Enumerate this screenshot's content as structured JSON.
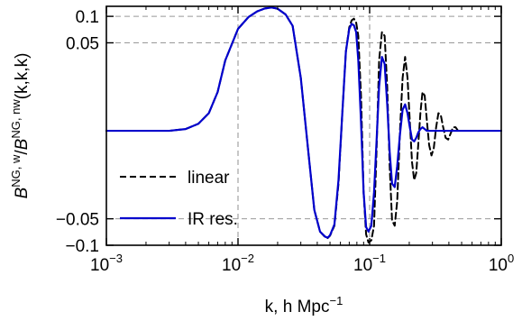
{
  "chart_data": {
    "type": "line",
    "xlabel": "k, h Mpc",
    "xlabel_sup": "−1",
    "ylabel_parts": [
      {
        "t": "B",
        "style": "italic"
      },
      {
        "t": "NG, w",
        "style": "sup"
      },
      {
        "t": "/",
        "style": "normal"
      },
      {
        "t": "B",
        "style": "italic"
      },
      {
        "t": "NG, nw",
        "style": "sup"
      },
      {
        "t": "(k,k,k)",
        "style": "normal"
      }
    ],
    "x_scale": "log",
    "xlim": [
      0.001,
      1.0
    ],
    "y_scale": "symlog",
    "y_linthresh": 0.05,
    "ylim": [
      -0.1,
      0.13
    ],
    "grid": "dashed",
    "legend_position": "lower-left",
    "x_ticks": [
      {
        "value": 0.001,
        "base": "10",
        "exp": "−3"
      },
      {
        "value": 0.01,
        "base": "10",
        "exp": "−2"
      },
      {
        "value": 0.1,
        "base": "10",
        "exp": "−1"
      },
      {
        "value": 1.0,
        "base": "10",
        "exp": "0"
      }
    ],
    "y_ticks": [
      {
        "value": 0.1,
        "label": "0.1"
      },
      {
        "value": 0.05,
        "label": "0.05"
      },
      {
        "value": -0.05,
        "label": "−0.05"
      },
      {
        "value": -0.1,
        "label": "−0.1"
      }
    ],
    "series": [
      {
        "name": "linear",
        "color": "#000000",
        "dash": "dashed",
        "x": [
          0.001,
          0.003,
          0.004,
          0.005,
          0.006,
          0.007,
          0.008,
          0.01,
          0.012,
          0.014,
          0.016,
          0.018,
          0.02,
          0.023,
          0.026,
          0.03,
          0.034,
          0.038,
          0.042,
          0.046,
          0.048,
          0.05,
          0.054,
          0.058,
          0.062,
          0.066,
          0.07,
          0.073,
          0.076,
          0.079,
          0.082,
          0.086,
          0.09,
          0.094,
          0.098,
          0.103,
          0.108,
          0.113,
          0.118,
          0.124,
          0.13,
          0.136,
          0.142,
          0.148,
          0.155,
          0.162,
          0.17,
          0.178,
          0.186,
          0.194,
          0.202,
          0.21,
          0.218,
          0.226,
          0.234,
          0.243,
          0.252,
          0.262,
          0.272,
          0.283,
          0.295,
          0.307,
          0.32,
          0.333,
          0.347,
          0.362,
          0.378,
          0.395,
          0.41,
          0.43,
          0.45,
          0.47,
          0.5,
          0.6,
          0.8,
          1.0
        ],
        "y": [
          0.0,
          0.0,
          0.001,
          0.004,
          0.01,
          0.022,
          0.04,
          0.072,
          0.098,
          0.114,
          0.123,
          0.126,
          0.122,
          0.105,
          0.078,
          0.03,
          -0.01,
          -0.045,
          -0.07,
          -0.081,
          -0.083,
          -0.078,
          -0.06,
          -0.03,
          0.01,
          0.045,
          0.075,
          0.09,
          0.094,
          0.085,
          0.06,
          0.02,
          -0.035,
          -0.075,
          -0.093,
          -0.088,
          -0.06,
          -0.01,
          0.04,
          0.066,
          0.06,
          0.025,
          -0.02,
          -0.052,
          -0.06,
          -0.04,
          0.0,
          0.03,
          0.042,
          0.03,
          0.005,
          -0.018,
          -0.028,
          -0.024,
          -0.008,
          0.01,
          0.022,
          0.02,
          0.006,
          -0.008,
          -0.014,
          -0.01,
          0.002,
          0.01,
          0.009,
          0.002,
          -0.004,
          -0.005,
          -0.002,
          0.002,
          0.002,
          0.0,
          0.0,
          0.0,
          0.0,
          0.0
        ]
      },
      {
        "name": "IR res.",
        "color": "#0000cc",
        "dash": "solid",
        "x": [
          0.001,
          0.003,
          0.004,
          0.005,
          0.006,
          0.007,
          0.008,
          0.01,
          0.012,
          0.014,
          0.016,
          0.018,
          0.02,
          0.023,
          0.026,
          0.03,
          0.034,
          0.038,
          0.042,
          0.046,
          0.048,
          0.05,
          0.054,
          0.058,
          0.062,
          0.066,
          0.07,
          0.073,
          0.076,
          0.079,
          0.082,
          0.086,
          0.09,
          0.094,
          0.098,
          0.103,
          0.108,
          0.113,
          0.118,
          0.124,
          0.13,
          0.136,
          0.142,
          0.148,
          0.155,
          0.162,
          0.17,
          0.178,
          0.186,
          0.194,
          0.202,
          0.21,
          0.218,
          0.226,
          0.234,
          0.243,
          0.252,
          0.262,
          0.272,
          0.283,
          0.295,
          0.307,
          0.32,
          0.333,
          0.347,
          0.362,
          0.378,
          0.395,
          0.41,
          0.43,
          0.45,
          0.47,
          0.5,
          0.6,
          0.8,
          1.0
        ],
        "y": [
          0.0,
          0.0,
          0.001,
          0.004,
          0.01,
          0.022,
          0.04,
          0.072,
          0.098,
          0.114,
          0.123,
          0.126,
          0.122,
          0.105,
          0.078,
          0.03,
          -0.01,
          -0.045,
          -0.07,
          -0.08,
          -0.082,
          -0.077,
          -0.058,
          -0.028,
          0.01,
          0.045,
          0.072,
          0.082,
          0.079,
          0.066,
          0.04,
          0.005,
          -0.035,
          -0.062,
          -0.07,
          -0.06,
          -0.035,
          -0.005,
          0.025,
          0.042,
          0.038,
          0.015,
          -0.012,
          -0.03,
          -0.032,
          -0.02,
          -0.002,
          0.012,
          0.015,
          0.01,
          0.002,
          -0.005,
          -0.006,
          -0.004,
          -0.001,
          0.001,
          0.002,
          0.001,
          0.0,
          0.0,
          0.0,
          0.0,
          0.0,
          0.0,
          0.0,
          0.0,
          0.0,
          0.0,
          0.0,
          0.0,
          0.0,
          0.0,
          0.0,
          0.0,
          0.0,
          0.0
        ]
      }
    ]
  }
}
